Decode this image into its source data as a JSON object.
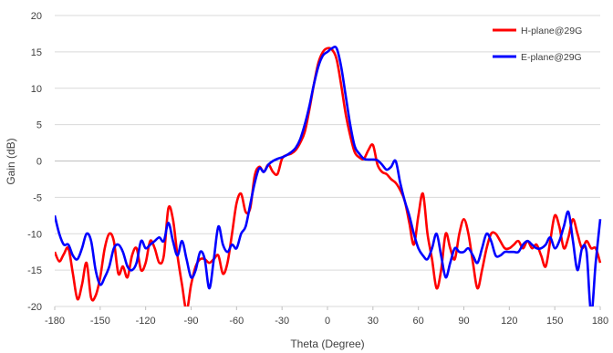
{
  "chart_data": {
    "type": "line",
    "xlabel": "Theta (Degree)",
    "ylabel": "Gain (dB)",
    "xlim": [
      -180,
      180
    ],
    "ylim": [
      -20,
      20
    ],
    "xticks": [
      -180,
      -150,
      -120,
      -90,
      -60,
      -30,
      0,
      30,
      60,
      90,
      120,
      150,
      180
    ],
    "yticks": [
      -20,
      -15,
      -10,
      -5,
      0,
      5,
      10,
      15,
      20
    ],
    "grid": "horizontal",
    "legend_position": "top-right",
    "series": [
      {
        "name": "H-plane@29G",
        "color": "#ff0000",
        "points": [
          [
            -180,
            -12.5
          ],
          [
            -177,
            -13.8
          ],
          [
            -174,
            -12.8
          ],
          [
            -171,
            -12
          ],
          [
            -168,
            -15.5
          ],
          [
            -165,
            -19
          ],
          [
            -162,
            -17
          ],
          [
            -159,
            -14
          ],
          [
            -156,
            -18.8
          ],
          [
            -153,
            -18.5
          ],
          [
            -150,
            -16
          ],
          [
            -147,
            -12
          ],
          [
            -144,
            -10
          ],
          [
            -141,
            -11
          ],
          [
            -138,
            -15.5
          ],
          [
            -135,
            -14.5
          ],
          [
            -132,
            -16
          ],
          [
            -129,
            -13
          ],
          [
            -126,
            -12
          ],
          [
            -123,
            -15
          ],
          [
            -120,
            -14
          ],
          [
            -117,
            -11
          ],
          [
            -114,
            -12
          ],
          [
            -111,
            -14
          ],
          [
            -108,
            -13
          ],
          [
            -105,
            -6.5
          ],
          [
            -102,
            -8
          ],
          [
            -99,
            -13
          ],
          [
            -96,
            -17
          ],
          [
            -93,
            -20.5
          ],
          [
            -90,
            -17
          ],
          [
            -87,
            -14.5
          ],
          [
            -84,
            -13.5
          ],
          [
            -81,
            -13.5
          ],
          [
            -78,
            -14
          ],
          [
            -75,
            -13.5
          ],
          [
            -72,
            -13
          ],
          [
            -69,
            -15.5
          ],
          [
            -66,
            -14
          ],
          [
            -63,
            -10
          ],
          [
            -60,
            -5.8
          ],
          [
            -57,
            -4.5
          ],
          [
            -54,
            -7
          ],
          [
            -51,
            -6.5
          ],
          [
            -48,
            -2
          ],
          [
            -45,
            -0.8
          ],
          [
            -42,
            -1.5
          ],
          [
            -39,
            -0.5
          ],
          [
            -36,
            -1.5
          ],
          [
            -33,
            -1.8
          ],
          [
            -30,
            0.3
          ],
          [
            -27,
            0.8
          ],
          [
            -24,
            1
          ],
          [
            -21,
            1.5
          ],
          [
            -18,
            2.5
          ],
          [
            -15,
            4
          ],
          [
            -12,
            7
          ],
          [
            -9,
            10.5
          ],
          [
            -6,
            13.5
          ],
          [
            -3,
            15
          ],
          [
            0,
            15.5
          ],
          [
            3,
            15.3
          ],
          [
            6,
            14
          ],
          [
            9,
            10.5
          ],
          [
            12,
            6.5
          ],
          [
            15,
            3.5
          ],
          [
            18,
            1.2
          ],
          [
            21,
            0.5
          ],
          [
            24,
            0.3
          ],
          [
            27,
            1.5
          ],
          [
            30,
            2.2
          ],
          [
            33,
            -0.5
          ],
          [
            36,
            -1.5
          ],
          [
            39,
            -1.8
          ],
          [
            42,
            -2.5
          ],
          [
            45,
            -3
          ],
          [
            48,
            -4
          ],
          [
            51,
            -5.5
          ],
          [
            54,
            -8.5
          ],
          [
            57,
            -11.5
          ],
          [
            60,
            -7.5
          ],
          [
            63,
            -4.5
          ],
          [
            66,
            -10
          ],
          [
            69,
            -13.5
          ],
          [
            72,
            -17.5
          ],
          [
            75,
            -15
          ],
          [
            78,
            -10
          ],
          [
            81,
            -12
          ],
          [
            84,
            -13.5
          ],
          [
            87,
            -10
          ],
          [
            90,
            -8
          ],
          [
            93,
            -10
          ],
          [
            96,
            -14
          ],
          [
            99,
            -17.5
          ],
          [
            102,
            -15
          ],
          [
            105,
            -12
          ],
          [
            108,
            -10
          ],
          [
            111,
            -10
          ],
          [
            114,
            -11
          ],
          [
            117,
            -12
          ],
          [
            120,
            -12
          ],
          [
            123,
            -11.5
          ],
          [
            126,
            -11
          ],
          [
            129,
            -12
          ],
          [
            132,
            -11
          ],
          [
            135,
            -12
          ],
          [
            138,
            -11.5
          ],
          [
            141,
            -13
          ],
          [
            144,
            -14.5
          ],
          [
            147,
            -11
          ],
          [
            150,
            -7.5
          ],
          [
            153,
            -9
          ],
          [
            156,
            -12
          ],
          [
            159,
            -10.5
          ],
          [
            162,
            -8
          ],
          [
            165,
            -10
          ],
          [
            168,
            -12
          ],
          [
            171,
            -11
          ],
          [
            174,
            -12
          ],
          [
            177,
            -12
          ],
          [
            180,
            -14
          ]
        ]
      },
      {
        "name": "E-plane@29G",
        "color": "#0000ff",
        "points": [
          [
            -180,
            -7.5
          ],
          [
            -177,
            -10
          ],
          [
            -174,
            -11.5
          ],
          [
            -171,
            -11.5
          ],
          [
            -168,
            -13
          ],
          [
            -165,
            -13.5
          ],
          [
            -162,
            -12
          ],
          [
            -159,
            -10
          ],
          [
            -156,
            -11
          ],
          [
            -153,
            -15
          ],
          [
            -150,
            -17
          ],
          [
            -147,
            -16
          ],
          [
            -144,
            -14.5
          ],
          [
            -141,
            -12
          ],
          [
            -138,
            -11.5
          ],
          [
            -135,
            -12.5
          ],
          [
            -132,
            -14.5
          ],
          [
            -129,
            -15
          ],
          [
            -126,
            -14
          ],
          [
            -123,
            -11
          ],
          [
            -120,
            -12
          ],
          [
            -117,
            -11.5
          ],
          [
            -114,
            -11
          ],
          [
            -111,
            -10.5
          ],
          [
            -108,
            -11
          ],
          [
            -105,
            -8.5
          ],
          [
            -102,
            -11
          ],
          [
            -99,
            -13
          ],
          [
            -96,
            -11
          ],
          [
            -93,
            -13.5
          ],
          [
            -90,
            -16
          ],
          [
            -87,
            -15
          ],
          [
            -84,
            -12.5
          ],
          [
            -81,
            -13.5
          ],
          [
            -78,
            -17.5
          ],
          [
            -75,
            -13.5
          ],
          [
            -72,
            -9
          ],
          [
            -69,
            -11.5
          ],
          [
            -66,
            -12.5
          ],
          [
            -63,
            -11.5
          ],
          [
            -60,
            -12
          ],
          [
            -57,
            -10
          ],
          [
            -54,
            -9
          ],
          [
            -51,
            -6
          ],
          [
            -48,
            -3
          ],
          [
            -45,
            -1
          ],
          [
            -42,
            -1.5
          ],
          [
            -39,
            -0.5
          ],
          [
            -36,
            0
          ],
          [
            -33,
            0.3
          ],
          [
            -30,
            0.5
          ],
          [
            -27,
            0.8
          ],
          [
            -24,
            1.2
          ],
          [
            -21,
            1.8
          ],
          [
            -18,
            3
          ],
          [
            -15,
            5
          ],
          [
            -12,
            7.5
          ],
          [
            -9,
            10.5
          ],
          [
            -6,
            13
          ],
          [
            -3,
            14.5
          ],
          [
            0,
            15
          ],
          [
            3,
            15.5
          ],
          [
            6,
            15.5
          ],
          [
            9,
            13
          ],
          [
            12,
            9
          ],
          [
            15,
            5
          ],
          [
            18,
            2
          ],
          [
            21,
            1
          ],
          [
            24,
            0.3
          ],
          [
            27,
            0.2
          ],
          [
            30,
            0.2
          ],
          [
            33,
            0.1
          ],
          [
            36,
            -0.5
          ],
          [
            39,
            -1.2
          ],
          [
            42,
            -0.8
          ],
          [
            45,
            0
          ],
          [
            48,
            -3
          ],
          [
            51,
            -5.5
          ],
          [
            54,
            -7.5
          ],
          [
            57,
            -10
          ],
          [
            60,
            -12
          ],
          [
            63,
            -13
          ],
          [
            66,
            -13.5
          ],
          [
            69,
            -12
          ],
          [
            72,
            -10
          ],
          [
            75,
            -13
          ],
          [
            78,
            -16
          ],
          [
            81,
            -14
          ],
          [
            84,
            -12
          ],
          [
            87,
            -12.5
          ],
          [
            90,
            -12.5
          ],
          [
            93,
            -12
          ],
          [
            96,
            -13
          ],
          [
            99,
            -14
          ],
          [
            102,
            -12
          ],
          [
            105,
            -10
          ],
          [
            108,
            -11
          ],
          [
            111,
            -13
          ],
          [
            114,
            -13
          ],
          [
            117,
            -12.5
          ],
          [
            120,
            -12.5
          ],
          [
            123,
            -12.5
          ],
          [
            126,
            -12.5
          ],
          [
            129,
            -11.5
          ],
          [
            132,
            -11
          ],
          [
            135,
            -11.5
          ],
          [
            138,
            -12
          ],
          [
            141,
            -12
          ],
          [
            144,
            -11.5
          ],
          [
            147,
            -10.5
          ],
          [
            150,
            -12
          ],
          [
            153,
            -11
          ],
          [
            156,
            -9
          ],
          [
            159,
            -7
          ],
          [
            162,
            -11
          ],
          [
            165,
            -15
          ],
          [
            168,
            -12
          ],
          [
            171,
            -12.5
          ],
          [
            174,
            -21
          ],
          [
            177,
            -14
          ],
          [
            180,
            -8
          ]
        ]
      }
    ]
  }
}
